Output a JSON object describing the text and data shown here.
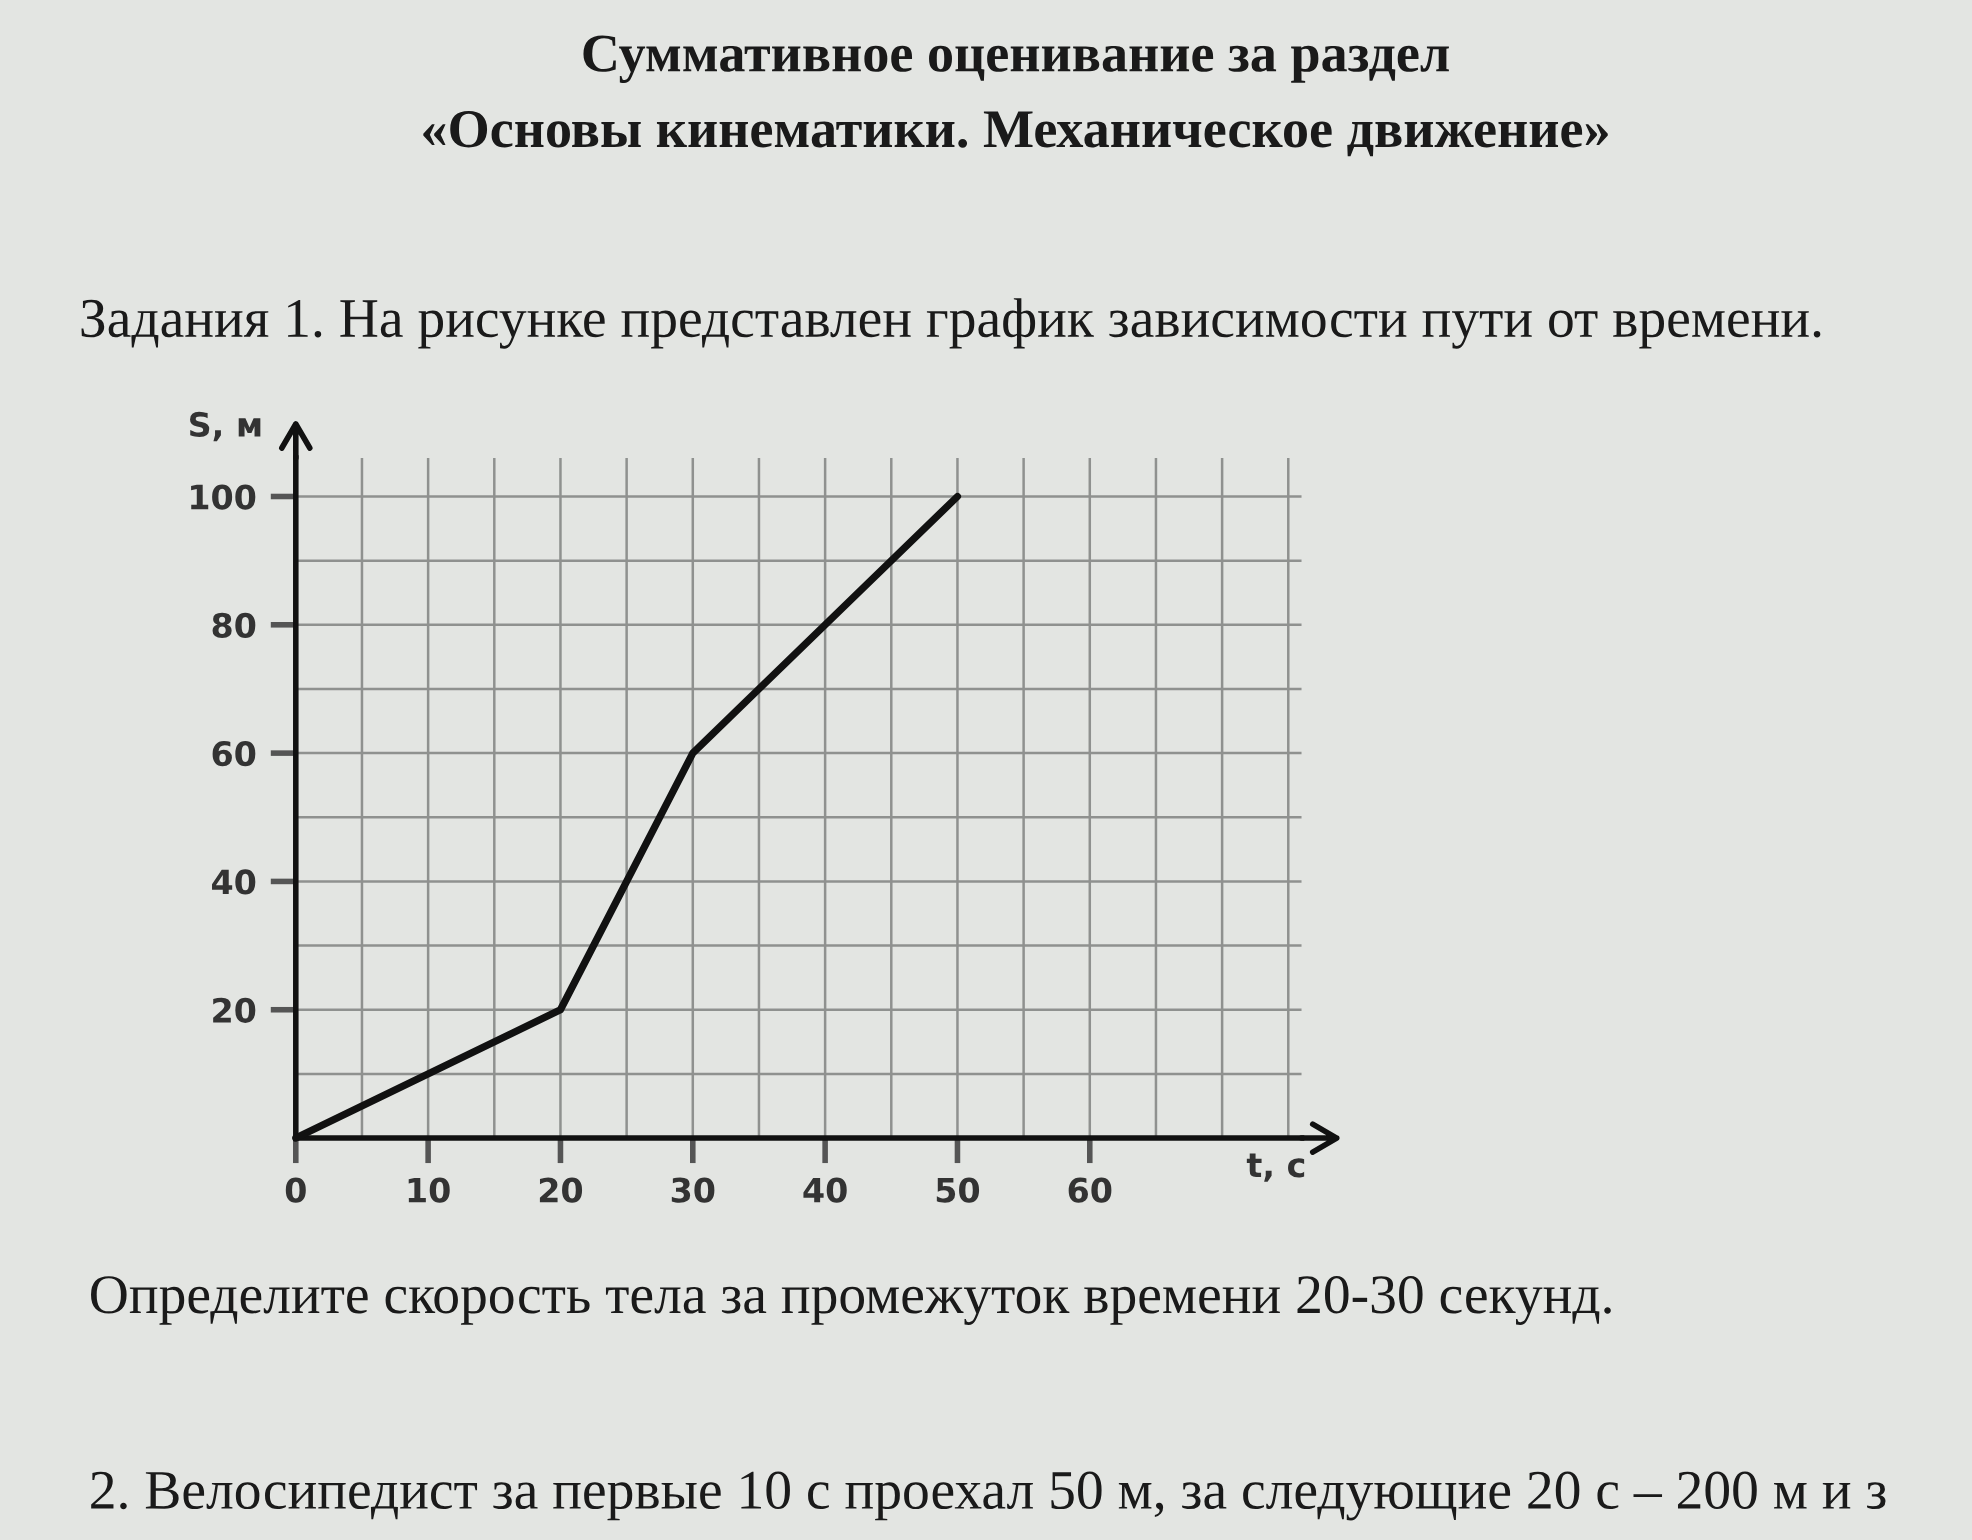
{
  "chart_data": {
    "type": "line",
    "title": "Суммативное оценивание за раздел\n«Основы кинематики. Механическое движение»",
    "subtitle": "Задания 1. На рисунке представлен график зависимости пути от времени.",
    "xlabel": "t, с",
    "ylabel": "S, м",
    "x": [
      0,
      20,
      30,
      50
    ],
    "values": [
      0,
      20,
      60,
      100
    ],
    "color": "#111111",
    "xlim": [
      0,
      76
    ],
    "ylim": [
      0,
      106
    ],
    "xticks": [
      0,
      {
        "value": 5,
        "label": null
      },
      10,
      {
        "value": 15,
        "label": null
      },
      20,
      {
        "value": 25,
        "label": null
      },
      30,
      {
        "value": 35,
        "label": null
      },
      40,
      {
        "value": 45,
        "label": null
      },
      50,
      {
        "value": 55,
        "label": null
      },
      60,
      {
        "value": 65,
        "label": null
      },
      {
        "value": 70,
        "label": null
      },
      {
        "value": 75,
        "label": null
      }
    ],
    "yticks": [
      {
        "value": 10,
        "label": null
      },
      20,
      {
        "value": 30,
        "label": null
      },
      40,
      {
        "value": 50,
        "label": null
      },
      60,
      {
        "value": 70,
        "label": null
      },
      80,
      {
        "value": 90,
        "label": null
      },
      100
    ],
    "grid": true,
    "annotations": [
      "Определите скорость тела за промежуток времени 20-30 секунд.",
      "2. Велосипедист за первые 10 с проехал 50 м, за следующие 20 с – 200 м и з"
    ]
  }
}
